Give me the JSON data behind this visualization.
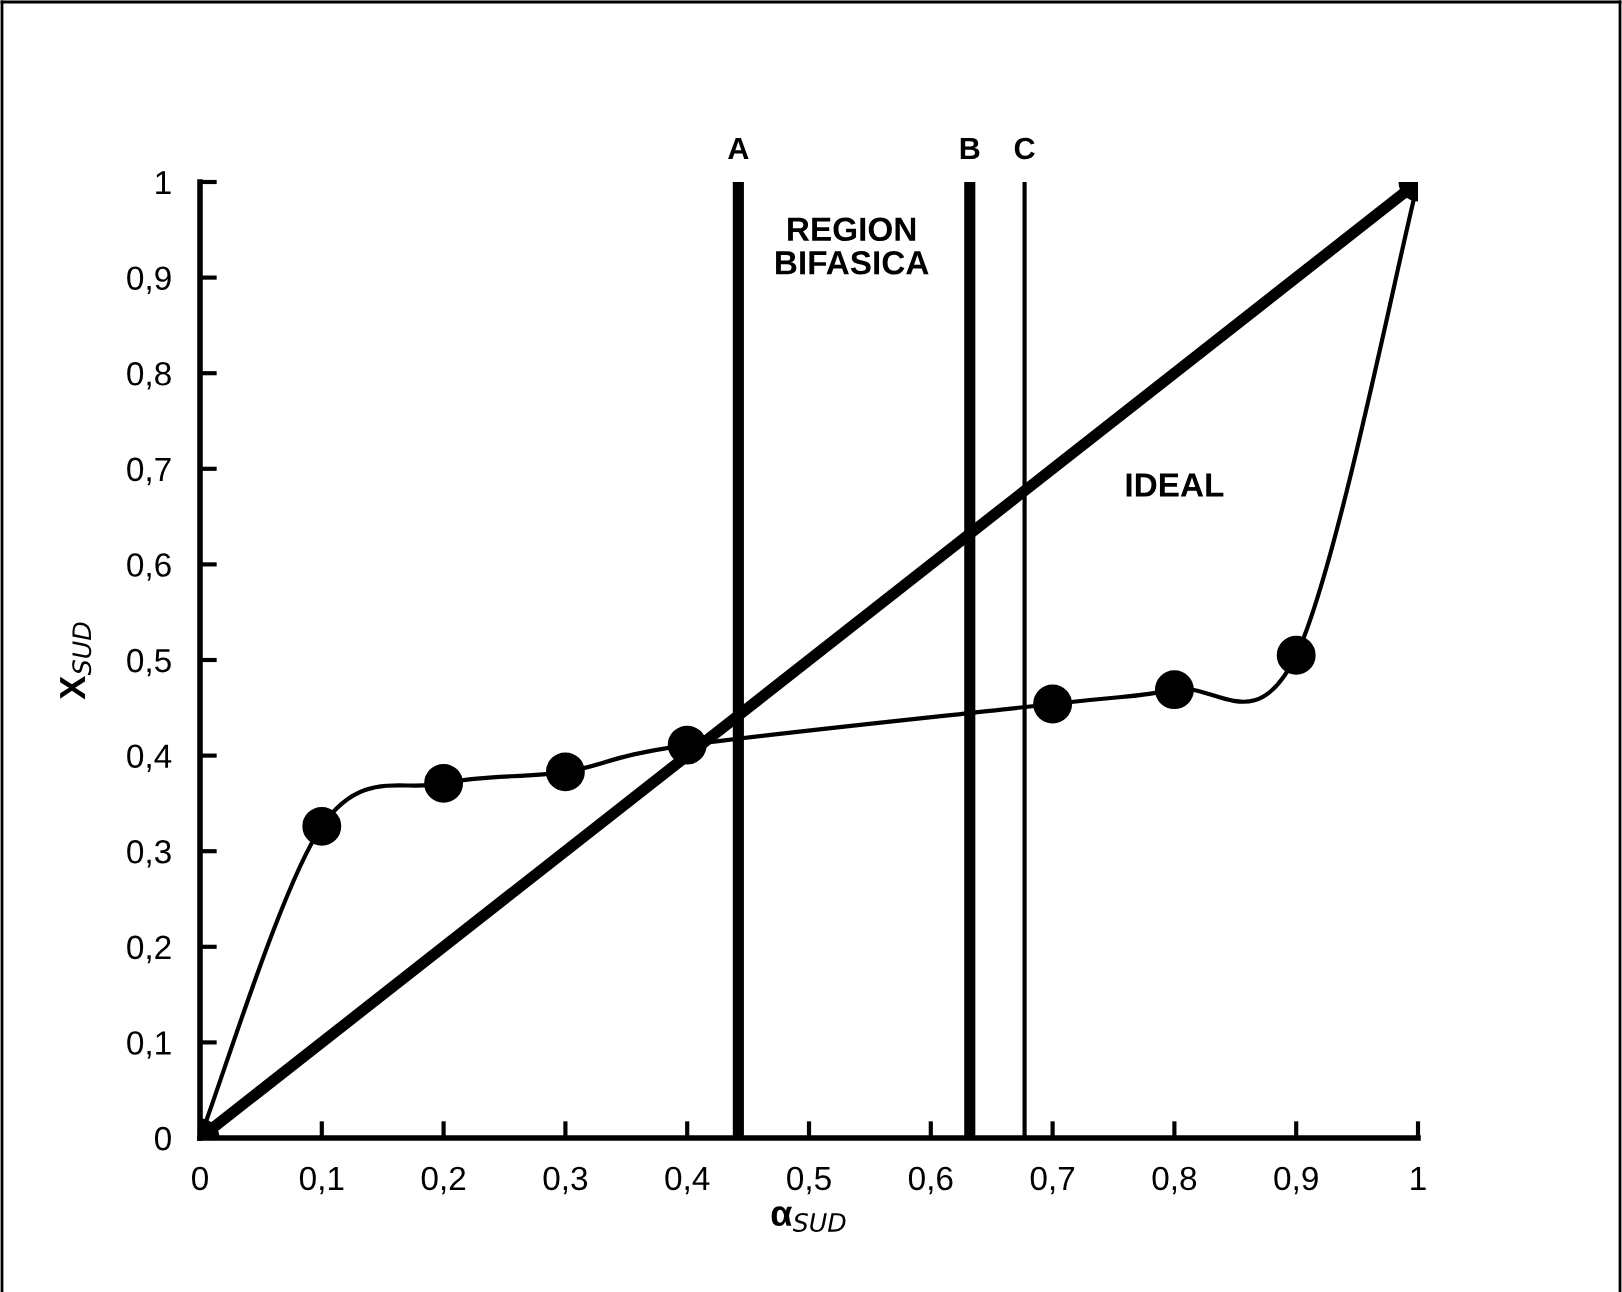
{
  "chart_data": {
    "type": "line",
    "xlabel": "α$_{SUD}$",
    "ylabel": "X$_{SUD}$",
    "series": [
      {
        "x": [
          0,
          0.1,
          0.2,
          0.3,
          0.4,
          0.7,
          0.8,
          0.9,
          1
        ],
        "values": [
          0,
          0.326,
          0.371,
          0.383,
          0.411,
          0.454,
          0.469,
          0.505,
          1
        ],
        "color": "#000000",
        "marker": "circle"
      },
      {
        "x": [
          0,
          1
        ],
        "values": [
          0,
          1
        ],
        "color": "#000000",
        "marker": "none"
      }
    ],
    "xlim": [
      0,
      1
    ],
    "ylim": [
      0,
      1
    ],
    "xticks": [
      0,
      {
        "value": 0.1,
        "label": "0,1"
      },
      {
        "value": 0.2,
        "label": "0,2"
      },
      {
        "value": 0.3,
        "label": "0,3"
      },
      {
        "value": 0.4,
        "label": "0,4"
      },
      {
        "value": 0.5,
        "label": "0,5"
      },
      {
        "value": 0.6,
        "label": "0,6"
      },
      {
        "value": 0.7,
        "label": "0,7"
      },
      {
        "value": 0.8,
        "label": "0,8"
      },
      {
        "value": 0.9,
        "label": "0,9"
      },
      1
    ],
    "yticks": [
      0,
      {
        "value": 0.1,
        "label": "0,1"
      },
      {
        "value": 0.2,
        "label": "0,2"
      },
      {
        "value": 0.3,
        "label": "0,3"
      },
      {
        "value": 0.4,
        "label": "0,4"
      },
      {
        "value": 0.5,
        "label": "0,5"
      },
      {
        "value": 0.6,
        "label": "0,6"
      },
      {
        "value": 0.7,
        "label": "0,7"
      },
      {
        "value": 0.8,
        "label": "0,8"
      },
      {
        "value": 0.9,
        "label": "0,9"
      },
      1
    ],
    "ref_lines": [
      {
        "axis": "x",
        "value": 0.442,
        "label": "A",
        "color": "#000000"
      },
      {
        "axis": "x",
        "value": 0.632,
        "label": "B",
        "color": "#000000"
      },
      {
        "axis": "x",
        "value": 0.677,
        "label": "C",
        "color": "#000000"
      }
    ],
    "annotations": [
      "REGION\nBIFASICA",
      "IDEAL"
    ],
    "grid": false,
    "legend": false
  }
}
